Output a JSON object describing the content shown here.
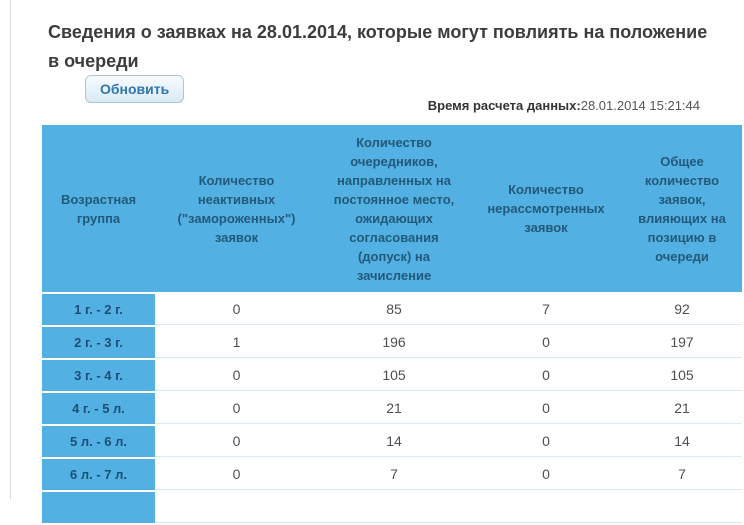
{
  "page": {
    "title": "Сведения о заявках на 28.01.2014, которые могут повлиять на положение в очереди",
    "refresh_button_label": "Обновить",
    "calc_time_label": "Время расчета данных:",
    "calc_time_value": "28.01.2014 15:21:44"
  },
  "table": {
    "headers": [
      "Возрастная группа",
      "Количество неактивных (\"замороженных\") заявок",
      "Количество очередников, направленных на постоянное место, ожидающих согласования (допуск) на зачисление",
      "Количество нерассмотренных заявок",
      "Общее количество заявок, влияющих на позицию в очереди"
    ],
    "rows": [
      {
        "group": "1 г. - 2 г.",
        "values": [
          "0",
          "85",
          "7",
          "92"
        ]
      },
      {
        "group": "2 г. - 3 г.",
        "values": [
          "1",
          "196",
          "0",
          "197"
        ]
      },
      {
        "group": "3 г. - 4 г.",
        "values": [
          "0",
          "105",
          "0",
          "105"
        ]
      },
      {
        "group": "4 г. - 5 л.",
        "values": [
          "0",
          "21",
          "0",
          "21"
        ]
      },
      {
        "group": "5 л. - 6 л.",
        "values": [
          "0",
          "14",
          "0",
          "14"
        ]
      },
      {
        "group": "6 л. - 7 л.",
        "values": [
          "0",
          "7",
          "0",
          "7"
        ]
      }
    ]
  },
  "colors": {
    "table_blue": "#52b1e2",
    "header_text": "#23597a",
    "button_text": "#2e76ad",
    "cell_divider": "#d4ecf9"
  }
}
